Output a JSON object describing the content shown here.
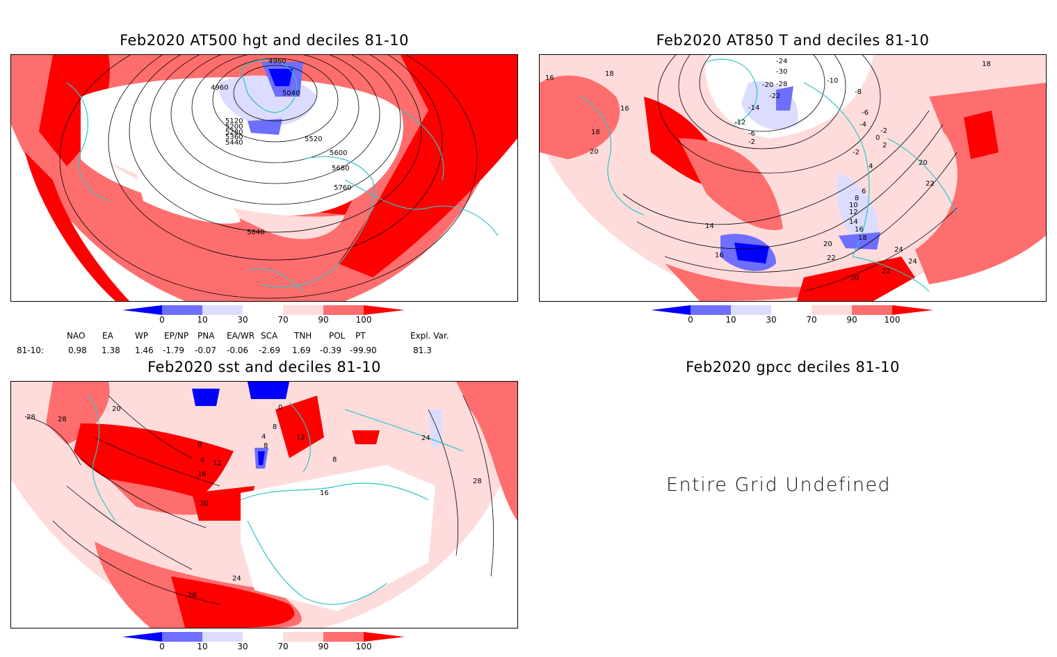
{
  "panels": {
    "p1": {
      "title": "Feb2020 AT500 hgt and deciles 81-10",
      "contour_labels": [
        "4960",
        "4960",
        "5040",
        "5120",
        "5200",
        "5280",
        "5360",
        "5440",
        "5520",
        "5600",
        "5680",
        "5760",
        "5840"
      ]
    },
    "p2": {
      "title": "Feb2020 AT850 T and deciles 81-10",
      "contour_labels": [
        "-24",
        "-30",
        "-28",
        "-22",
        "-20",
        "-14",
        "-12",
        "-10",
        "-8",
        "-6",
        "-6",
        "-4",
        "-2",
        "-2",
        "-2",
        "0",
        "2",
        "4",
        "6",
        "8",
        "10",
        "12",
        "14",
        "16",
        "18",
        "20",
        "22",
        "24",
        "16",
        "18",
        "16",
        "18",
        "20",
        "14",
        "16",
        "20",
        "22",
        "22",
        "20",
        "24",
        "18"
      ]
    },
    "p3": {
      "title": "Feb2020 sst and deciles 81-10",
      "contour_labels": [
        "28",
        "28",
        "20",
        "0",
        "4",
        "8",
        "4",
        "8",
        "12",
        "16",
        "20",
        "24",
        "28",
        "16",
        "12",
        "8",
        "24",
        "28",
        "0"
      ]
    },
    "p4": {
      "title": "Feb2020 gpcc deciles 81-10",
      "message": "Entire Grid Undefined"
    }
  },
  "colorbar": {
    "labels": [
      "0",
      "10",
      "30",
      "70",
      "90",
      "100"
    ],
    "colors": [
      "#0000ff",
      "#6e6eff",
      "#dcdcff",
      "#ffffff",
      "#ffdcdc",
      "#ff6e6e",
      "#ff0000"
    ]
  },
  "indices": {
    "headers": [
      "NAO",
      "EA",
      "WP",
      "EP/NP",
      "PNA",
      "EA/WR",
      "SCA",
      "TNH",
      "POL",
      "PT",
      "Expl. Var."
    ],
    "row_label": "81-10:",
    "values": [
      "0.98",
      "1.38",
      "1.46",
      "-1.79",
      "-0.07",
      "-0.06",
      "-2.69",
      "1.69",
      "-0.39",
      "-99.90",
      "81.3"
    ]
  },
  "colors": {
    "coast": "#2ec4c4",
    "deep_red": "#ff0000",
    "mid_red": "#ff6e6e",
    "light_red": "#ffdcdc",
    "deep_blue": "#0000ff",
    "mid_blue": "#6e6eff",
    "light_blue": "#dcdcff"
  }
}
